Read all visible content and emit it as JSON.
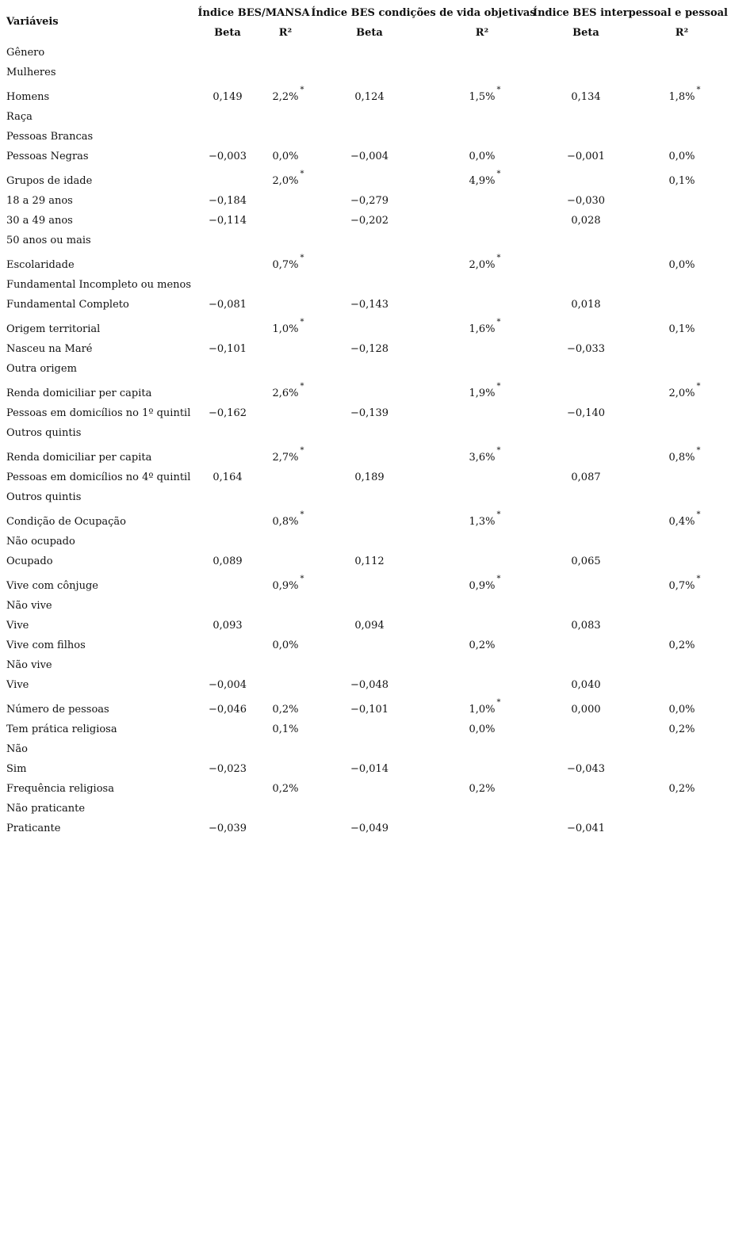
{
  "header": {
    "variables_label": "Variáveis",
    "groups": [
      "Índice BES/MANSA",
      "Índice BES condições de vida objetivas",
      "Índice BES interpessoal e pessoal"
    ],
    "subcols": [
      "Beta",
      "R²",
      "Beta",
      "R²",
      "Beta",
      "R²"
    ]
  },
  "star_symbol": "*",
  "rows": [
    {
      "label": "Gênero",
      "cells": [
        "",
        "",
        "",
        "",
        "",
        ""
      ],
      "stars": [
        false,
        false,
        false
      ]
    },
    {
      "label": "Mulheres",
      "cells": [
        "",
        "",
        "",
        "",
        "",
        ""
      ],
      "stars": [
        false,
        false,
        false
      ]
    },
    {
      "label": "Homens",
      "cells": [
        "0,149",
        "2,2%",
        "0,124",
        "1,5%",
        "0,134",
        "1,8%"
      ],
      "stars": [
        true,
        true,
        true
      ]
    },
    {
      "label": "Raça",
      "cells": [
        "",
        "",
        "",
        "",
        "",
        ""
      ],
      "stars": [
        false,
        false,
        false
      ]
    },
    {
      "label": "Pessoas Brancas",
      "cells": [
        "",
        "",
        "",
        "",
        "",
        ""
      ],
      "stars": [
        false,
        false,
        false
      ]
    },
    {
      "label": "Pessoas Negras",
      "cells": [
        "−0,003",
        "0,0%",
        "−0,004",
        "0,0%",
        "−0,001",
        "0,0%"
      ],
      "stars": [
        false,
        false,
        false
      ]
    },
    {
      "label": "Grupos de idade",
      "cells": [
        "",
        "2,0%",
        "",
        "4,9%",
        "",
        "0,1%"
      ],
      "stars": [
        true,
        true,
        false
      ]
    },
    {
      "label": "18 a 29 anos",
      "cells": [
        "−0,184",
        "",
        "−0,279",
        "",
        "−0,030",
        ""
      ],
      "stars": [
        false,
        false,
        false
      ]
    },
    {
      "label": "30 a 49 anos",
      "cells": [
        "−0,114",
        "",
        "−0,202",
        "",
        "0,028",
        ""
      ],
      "stars": [
        false,
        false,
        false
      ]
    },
    {
      "label": "50 anos ou mais",
      "cells": [
        "",
        "",
        "",
        "",
        "",
        ""
      ],
      "stars": [
        false,
        false,
        false
      ]
    },
    {
      "label": "Escolaridade",
      "cells": [
        "",
        "0,7%",
        "",
        "2,0%",
        "",
        "0,0%"
      ],
      "stars": [
        true,
        true,
        false
      ]
    },
    {
      "label": "Fundamental Incompleto ou menos",
      "cells": [
        "",
        "",
        "",
        "",
        "",
        ""
      ],
      "stars": [
        false,
        false,
        false
      ]
    },
    {
      "label": "Fundamental Completo",
      "cells": [
        "−0,081",
        "",
        "−0,143",
        "",
        "0,018",
        ""
      ],
      "stars": [
        false,
        false,
        false
      ]
    },
    {
      "label": "Origem territorial",
      "cells": [
        "",
        "1,0%",
        "",
        "1,6%",
        "",
        "0,1%"
      ],
      "stars": [
        true,
        true,
        false
      ]
    },
    {
      "label": "Nasceu na Maré",
      "cells": [
        "−0,101",
        "",
        "−0,128",
        "",
        "−0,033",
        ""
      ],
      "stars": [
        false,
        false,
        false
      ]
    },
    {
      "label": "Outra origem",
      "cells": [
        "",
        "",
        "",
        "",
        "",
        ""
      ],
      "stars": [
        false,
        false,
        false
      ]
    },
    {
      "label": "Renda domiciliar per capita",
      "cells": [
        "",
        "2,6%",
        "",
        "1,9%",
        "",
        "2,0%"
      ],
      "stars": [
        true,
        true,
        true
      ]
    },
    {
      "label": "Pessoas em domicílios no 1º quintil",
      "cells": [
        "−0,162",
        "",
        "−0,139",
        "",
        "−0,140",
        ""
      ],
      "stars": [
        false,
        false,
        false
      ]
    },
    {
      "label": "Outros quintis",
      "cells": [
        "",
        "",
        "",
        "",
        "",
        ""
      ],
      "stars": [
        false,
        false,
        false
      ]
    },
    {
      "label": "Renda domiciliar per capita",
      "cells": [
        "",
        "2,7%",
        "",
        "3,6%",
        "",
        "0,8%"
      ],
      "stars": [
        true,
        true,
        true
      ]
    },
    {
      "label": "Pessoas em domicílios no 4º quintil",
      "cells": [
        "0,164",
        "",
        "0,189",
        "",
        "0,087",
        ""
      ],
      "stars": [
        false,
        false,
        false
      ]
    },
    {
      "label": "Outros quintis",
      "cells": [
        "",
        "",
        "",
        "",
        "",
        ""
      ],
      "stars": [
        false,
        false,
        false
      ]
    },
    {
      "label": "Condição de Ocupação",
      "cells": [
        "",
        "0,8%",
        "",
        "1,3%",
        "",
        "0,4%"
      ],
      "stars": [
        true,
        true,
        true
      ]
    },
    {
      "label": "Não ocupado",
      "cells": [
        "",
        "",
        "",
        "",
        "",
        ""
      ],
      "stars": [
        false,
        false,
        false
      ]
    },
    {
      "label": "Ocupado",
      "cells": [
        "0,089",
        "",
        "0,112",
        "",
        "0,065",
        ""
      ],
      "stars": [
        false,
        false,
        false
      ]
    },
    {
      "label": "Vive com cônjuge",
      "cells": [
        "",
        "0,9%",
        "",
        "0,9%",
        "",
        "0,7%"
      ],
      "stars": [
        true,
        true,
        true
      ]
    },
    {
      "label": "Não vive",
      "cells": [
        "",
        "",
        "",
        "",
        "",
        ""
      ],
      "stars": [
        false,
        false,
        false
      ]
    },
    {
      "label": "Vive",
      "cells": [
        "0,093",
        "",
        "0,094",
        "",
        "0,083",
        ""
      ],
      "stars": [
        false,
        false,
        false
      ]
    },
    {
      "label": "Vive com filhos",
      "cells": [
        "",
        "0,0%",
        "",
        "0,2%",
        "",
        "0,2%"
      ],
      "stars": [
        false,
        false,
        false
      ]
    },
    {
      "label": "Não vive",
      "cells": [
        "",
        "",
        "",
        "",
        "",
        ""
      ],
      "stars": [
        false,
        false,
        false
      ]
    },
    {
      "label": "Vive",
      "cells": [
        "−0,004",
        "",
        "−0,048",
        "",
        "0,040",
        ""
      ],
      "stars": [
        false,
        false,
        false
      ]
    },
    {
      "label": "Número de pessoas",
      "cells": [
        "−0,046",
        "0,2%",
        "−0,101",
        "1,0%",
        "0,000",
        "0,0%"
      ],
      "stars": [
        false,
        true,
        false
      ]
    },
    {
      "label": "Tem prática religiosa",
      "cells": [
        "",
        "0,1%",
        "",
        "0,0%",
        "",
        "0,2%"
      ],
      "stars": [
        false,
        false,
        false
      ]
    },
    {
      "label": "Não",
      "cells": [
        "",
        "",
        "",
        "",
        "",
        ""
      ],
      "stars": [
        false,
        false,
        false
      ]
    },
    {
      "label": "Sim",
      "cells": [
        "−0,023",
        "",
        "−0,014",
        "",
        "−0,043",
        ""
      ],
      "stars": [
        false,
        false,
        false
      ]
    },
    {
      "label": "Frequência religiosa",
      "cells": [
        "",
        "0,2%",
        "",
        "0,2%",
        "",
        "0,2%"
      ],
      "stars": [
        false,
        false,
        false
      ]
    },
    {
      "label": "Não praticante",
      "cells": [
        "",
        "",
        "",
        "",
        "",
        ""
      ],
      "stars": [
        false,
        false,
        false
      ]
    },
    {
      "label": "Praticante",
      "cells": [
        "−0,039",
        "",
        "−0,049",
        "",
        "−0,041",
        ""
      ],
      "stars": [
        false,
        false,
        false
      ]
    }
  ]
}
